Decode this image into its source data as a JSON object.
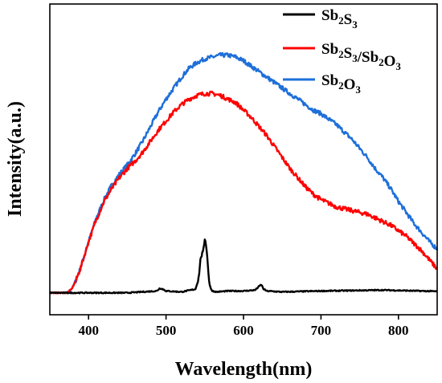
{
  "chart_data": {
    "type": "line",
    "xlabel": "Wavelength(nm)",
    "ylabel": "Intensity(a.u.)",
    "xlim": [
      350,
      850
    ],
    "ylim": [
      -0.12,
      1.58
    ],
    "xticks": [
      400,
      500,
      600,
      700,
      800
    ],
    "y_tick_labels": false,
    "grid": false,
    "legend_position": "top-right",
    "series": [
      {
        "name": "Sb2S3",
        "legend": [
          {
            "t": "Sb"
          },
          {
            "t": "2",
            "sub": true
          },
          {
            "t": "S"
          },
          {
            "t": "3",
            "sub": true
          }
        ],
        "color": "#000000",
        "x": [
          350,
          380,
          400,
          450,
          488,
          492,
          496,
          500,
          520,
          538,
          542,
          545,
          548,
          550,
          552,
          554,
          556,
          558,
          560,
          565,
          580,
          600,
          615,
          620,
          623,
          626,
          630,
          650,
          700,
          780,
          850
        ],
        "y": [
          0,
          0,
          0,
          0,
          0.01,
          0.025,
          0.02,
          0.01,
          0.005,
          0.02,
          0.08,
          0.2,
          0.22,
          0.3,
          0.26,
          0.15,
          0.05,
          0.02,
          0.01,
          0.005,
          0.01,
          0.01,
          0.015,
          0.035,
          0.045,
          0.02,
          0.01,
          0.005,
          0.01,
          0.015,
          0.008
        ]
      },
      {
        "name": "Sb2S3/Sb2O3",
        "legend": [
          {
            "t": "Sb"
          },
          {
            "t": "2",
            "sub": true
          },
          {
            "t": "S"
          },
          {
            "t": "3",
            "sub": true
          },
          {
            "t": "/Sb"
          },
          {
            "t": "2",
            "sub": true
          },
          {
            "t": "O"
          },
          {
            "t": "3",
            "sub": true
          }
        ],
        "color": "#ff0000",
        "x": [
          350,
          365,
          372,
          378,
          383,
          390,
          400,
          410,
          420,
          430,
          440,
          450,
          460,
          470,
          480,
          490,
          500,
          510,
          520,
          530,
          540,
          550,
          560,
          570,
          580,
          590,
          600,
          610,
          620,
          630,
          640,
          650,
          660,
          670,
          680,
          690,
          700,
          710,
          720,
          730,
          740,
          750,
          760,
          770,
          780,
          790,
          800,
          810,
          820,
          830,
          840,
          850
        ],
        "y": [
          0,
          0,
          0,
          0.02,
          0.06,
          0.14,
          0.28,
          0.4,
          0.5,
          0.57,
          0.63,
          0.68,
          0.72,
          0.77,
          0.83,
          0.89,
          0.94,
          0.99,
          1.03,
          1.06,
          1.08,
          1.09,
          1.09,
          1.08,
          1.06,
          1.04,
          1.0,
          0.96,
          0.91,
          0.86,
          0.8,
          0.74,
          0.68,
          0.63,
          0.58,
          0.54,
          0.51,
          0.49,
          0.47,
          0.46,
          0.45,
          0.44,
          0.43,
          0.41,
          0.39,
          0.37,
          0.34,
          0.31,
          0.27,
          0.23,
          0.18,
          0.13
        ]
      },
      {
        "name": "Sb2O3",
        "legend": [
          {
            "t": "Sb"
          },
          {
            "t": "2",
            "sub": true
          },
          {
            "t": "O"
          },
          {
            "t": "3",
            "sub": true
          }
        ],
        "color": "#1e6fd9",
        "x": [
          350,
          365,
          372,
          378,
          383,
          390,
          400,
          410,
          420,
          430,
          440,
          450,
          460,
          470,
          480,
          490,
          500,
          510,
          520,
          530,
          540,
          550,
          560,
          570,
          580,
          590,
          600,
          610,
          620,
          630,
          640,
          650,
          660,
          670,
          680,
          690,
          700,
          710,
          720,
          730,
          740,
          750,
          760,
          770,
          780,
          790,
          800,
          810,
          820,
          830,
          840,
          850
        ],
        "y": [
          0,
          0,
          0,
          0.02,
          0.06,
          0.14,
          0.28,
          0.41,
          0.51,
          0.59,
          0.65,
          0.7,
          0.76,
          0.83,
          0.91,
          0.99,
          1.06,
          1.12,
          1.18,
          1.23,
          1.26,
          1.28,
          1.29,
          1.3,
          1.3,
          1.29,
          1.27,
          1.24,
          1.21,
          1.18,
          1.15,
          1.12,
          1.09,
          1.06,
          1.03,
          1.0,
          0.98,
          0.95,
          0.92,
          0.88,
          0.84,
          0.79,
          0.74,
          0.68,
          0.63,
          0.57,
          0.5,
          0.44,
          0.38,
          0.33,
          0.28,
          0.24
        ]
      }
    ]
  }
}
